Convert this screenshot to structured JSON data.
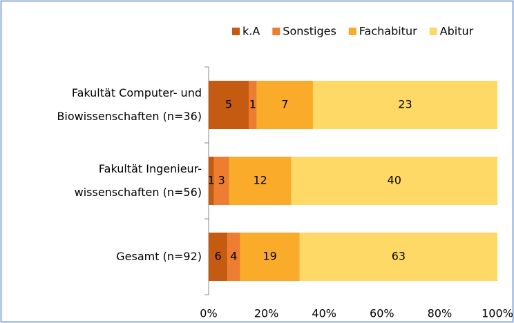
{
  "chart_data": {
    "type": "bar",
    "orientation": "horizontal",
    "stacked": "percent",
    "categories": [
      [
        "Fakultät Computer- und",
        "Biowissenschaften (n=36)"
      ],
      [
        "Fakultät Ingenieur-",
        "wissenschaften (n=56)"
      ],
      [
        "Gesamt (n=92)"
      ]
    ],
    "series": [
      {
        "name": "k.A",
        "color": "#c55a11",
        "values": [
          5,
          1,
          6
        ]
      },
      {
        "name": "Sonstiges",
        "color": "#ed7d31",
        "values": [
          1,
          3,
          4
        ]
      },
      {
        "name": "Fachabitur",
        "color": "#fbab2a",
        "values": [
          7,
          12,
          19
        ]
      },
      {
        "name": "Abitur",
        "color": "#ffd966",
        "values": [
          23,
          40,
          63
        ]
      }
    ],
    "xlim": [
      0,
      100
    ],
    "xticks": [
      {
        "value": 0,
        "label": "0%"
      },
      {
        "value": 20,
        "label": "20%"
      },
      {
        "value": 40,
        "label": "40%"
      },
      {
        "value": 60,
        "label": "60%"
      },
      {
        "value": 80,
        "label": "80%"
      },
      {
        "value": 100,
        "label": "100%"
      }
    ],
    "legend": "top"
  }
}
